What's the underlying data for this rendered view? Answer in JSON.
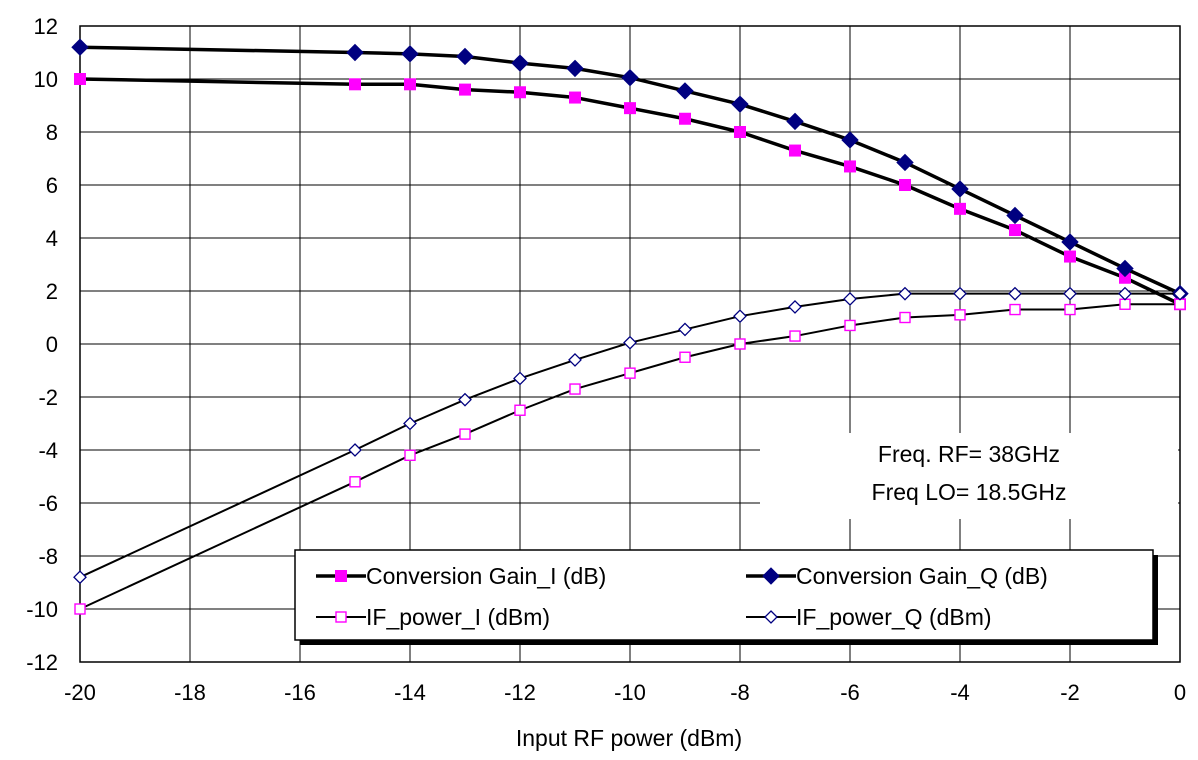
{
  "chart_data": {
    "type": "line",
    "title": "",
    "xlabel": "Input RF power (dBm)",
    "ylabel": "",
    "xlim": [
      -20,
      0
    ],
    "ylim": [
      -12,
      12
    ],
    "x_ticks": [
      -20,
      -18,
      -16,
      -14,
      -12,
      -10,
      -8,
      -6,
      -4,
      -2,
      0
    ],
    "y_ticks": [
      -12,
      -10,
      -8,
      -6,
      -4,
      -2,
      0,
      2,
      4,
      6,
      8,
      10,
      12
    ],
    "grid": true,
    "legend_position": "bottom-right",
    "series": [
      {
        "name": "Conversion Gain_I (dB)",
        "color": "#ff00ff",
        "line_width": "thick",
        "marker": "square-filled",
        "x": [
          -20,
          -15,
          -14,
          -13,
          -12,
          -11,
          -10,
          -9,
          -8,
          -7,
          -6,
          -5,
          -4,
          -3,
          -2,
          -1,
          0
        ],
        "y": [
          10.0,
          9.8,
          9.8,
          9.6,
          9.5,
          9.3,
          8.9,
          8.5,
          8.0,
          7.3,
          6.7,
          6.0,
          5.1,
          4.3,
          3.3,
          2.5,
          1.5
        ]
      },
      {
        "name": "Conversion Gain_Q (dB)",
        "color": "#000080",
        "line_width": "thick",
        "marker": "diamond-filled",
        "x": [
          -20,
          -15,
          -14,
          -13,
          -12,
          -11,
          -10,
          -9,
          -8,
          -7,
          -6,
          -5,
          -4,
          -3,
          -2,
          -1,
          0
        ],
        "y": [
          11.2,
          11.0,
          10.95,
          10.85,
          10.6,
          10.4,
          10.05,
          9.55,
          9.05,
          8.4,
          7.7,
          6.85,
          5.85,
          4.85,
          3.85,
          2.85,
          1.9
        ]
      },
      {
        "name": "IF_power_I (dBm)",
        "color": "#ff00ff",
        "line_width": "thin",
        "marker": "square-open",
        "x": [
          -20,
          -15,
          -14,
          -13,
          -12,
          -11,
          -10,
          -9,
          -8,
          -7,
          -6,
          -5,
          -4,
          -3,
          -2,
          -1,
          0
        ],
        "y": [
          -10.0,
          -5.2,
          -4.2,
          -3.4,
          -2.5,
          -1.7,
          -1.1,
          -0.5,
          0.0,
          0.3,
          0.7,
          1.0,
          1.1,
          1.3,
          1.3,
          1.5,
          1.5
        ]
      },
      {
        "name": "IF_power_Q (dBm)",
        "color": "#000080",
        "line_width": "thin",
        "marker": "diamond-open",
        "x": [
          -20,
          -15,
          -14,
          -13,
          -12,
          -11,
          -10,
          -9,
          -8,
          -7,
          -6,
          -5,
          -4,
          -3,
          -2,
          -1,
          0
        ],
        "y": [
          -8.8,
          -4.0,
          -3.0,
          -2.1,
          -1.3,
          -0.6,
          0.05,
          0.55,
          1.05,
          1.4,
          1.7,
          1.9,
          1.9,
          1.9,
          1.9,
          1.9,
          1.9
        ]
      }
    ],
    "annotations": [
      "Freq. RF= 38GHz",
      "Freq LO= 18.5GHz"
    ]
  }
}
